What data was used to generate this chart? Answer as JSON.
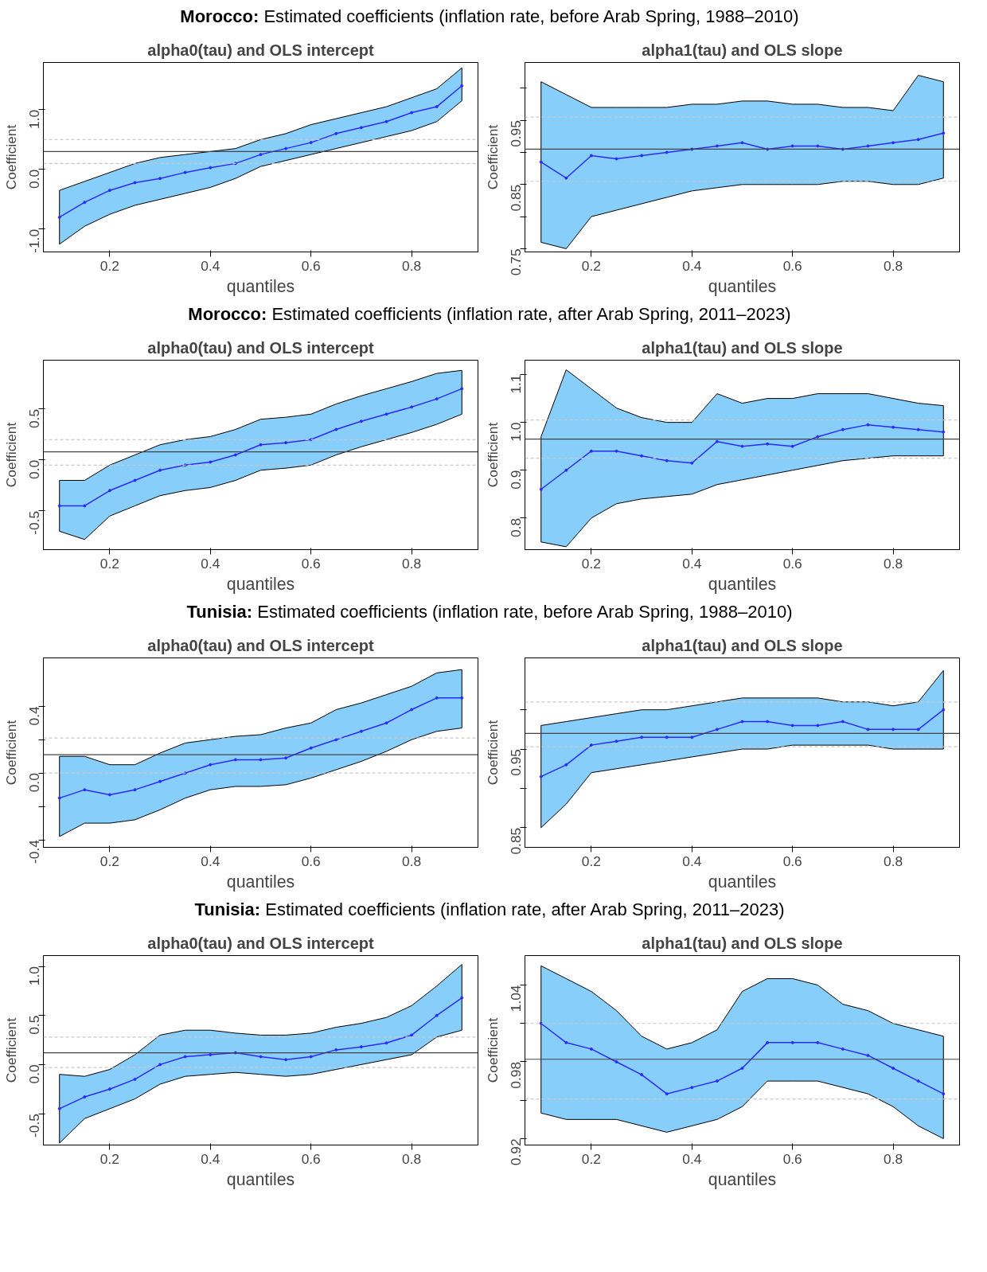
{
  "chart_data": [
    {
      "type": "other",
      "title": "Morocco: Estimated coefficients (inflation rate, before Arab Spring, 1988–2010)"
    },
    {
      "type": "line",
      "title": "alpha0(tau) and OLS intercept",
      "xlabel": "quantiles",
      "ylabel": "Coefficient",
      "marker": "circle",
      "xlim": [
        0.068,
        0.932
      ],
      "xticks": [
        0.2,
        0.4,
        0.6,
        0.8
      ],
      "ylim": [
        -1.38,
        1.79
      ],
      "yticks": [
        {
          "value": -1,
          "label": "-1.0"
        },
        {
          "value": 0,
          "label": "0.0"
        },
        {
          "value": 1,
          "label": "1.0"
        }
      ],
      "x": [
        0.1,
        0.15,
        0.2,
        0.25,
        0.3,
        0.35,
        0.4,
        0.45,
        0.5,
        0.55,
        0.6,
        0.65,
        0.7,
        0.75,
        0.8,
        0.85,
        0.9
      ],
      "series": [
        {
          "color": "#2b2bff",
          "values": [
            -0.8,
            -0.55,
            -0.35,
            -0.22,
            -0.15,
            -0.05,
            0.03,
            0.1,
            0.25,
            0.35,
            0.45,
            0.6,
            0.7,
            0.8,
            0.95,
            1.05,
            1.4
          ],
          "lower": [
            -1.25,
            -0.95,
            -0.75,
            -0.6,
            -0.5,
            -0.4,
            -0.3,
            -0.15,
            0.05,
            0.15,
            0.25,
            0.35,
            0.45,
            0.55,
            0.65,
            0.8,
            1.15
          ],
          "upper": [
            -0.35,
            -0.2,
            -0.05,
            0.1,
            0.2,
            0.25,
            0.3,
            0.35,
            0.5,
            0.6,
            0.75,
            0.85,
            0.95,
            1.05,
            1.2,
            1.35,
            1.7
          ]
        }
      ],
      "ref_lines": [
        {
          "axis": "y",
          "value": 0.3,
          "color": "#444444",
          "line_style": "solid"
        },
        {
          "axis": "y",
          "value": 0.5,
          "color": "#c8c8c8",
          "line_style": "dashed"
        },
        {
          "axis": "y",
          "value": 0.1,
          "color": "#c8c8c8",
          "line_style": "dashed"
        }
      ]
    },
    {
      "type": "line",
      "title": "alpha1(tau) and OLS slope",
      "xlabel": "quantiles",
      "ylabel": "Coefficient",
      "marker": "circle",
      "xlim": [
        0.068,
        0.932
      ],
      "xticks": [
        0.2,
        0.4,
        0.6,
        0.8
      ],
      "ylim": [
        0.745,
        1.04
      ],
      "yticks": [
        0.75,
        {
          "value": 0.8,
          "label": null
        },
        0.85,
        {
          "value": 0.9,
          "label": null
        },
        0.95,
        {
          "value": 1.0,
          "label": null
        }
      ],
      "x": [
        0.1,
        0.15,
        0.2,
        0.25,
        0.3,
        0.35,
        0.4,
        0.45,
        0.5,
        0.55,
        0.6,
        0.65,
        0.7,
        0.75,
        0.8,
        0.85,
        0.9
      ],
      "series": [
        {
          "color": "#2b2bff",
          "values": [
            0.885,
            0.86,
            0.895,
            0.89,
            0.895,
            0.9,
            0.905,
            0.91,
            0.915,
            0.905,
            0.91,
            0.91,
            0.905,
            0.91,
            0.915,
            0.92,
            0.93
          ],
          "lower": [
            0.76,
            0.75,
            0.8,
            0.81,
            0.82,
            0.83,
            0.84,
            0.845,
            0.85,
            0.85,
            0.85,
            0.85,
            0.855,
            0.855,
            0.85,
            0.85,
            0.86
          ],
          "upper": [
            1.01,
            0.99,
            0.97,
            0.97,
            0.97,
            0.97,
            0.975,
            0.975,
            0.98,
            0.98,
            0.975,
            0.975,
            0.97,
            0.97,
            0.965,
            1.02,
            1.01
          ]
        }
      ],
      "ref_lines": [
        {
          "axis": "y",
          "value": 0.905,
          "color": "#444444",
          "line_style": "solid"
        },
        {
          "axis": "y",
          "value": 0.855,
          "color": "#c8c8c8",
          "line_style": "dashed"
        },
        {
          "axis": "y",
          "value": 0.955,
          "color": "#c8c8c8",
          "line_style": "dashed"
        }
      ]
    },
    {
      "type": "other",
      "title": "Morocco: Estimated coefficients (inflation rate, after Arab Spring, 2011–2023)"
    },
    {
      "type": "line",
      "title": "alpha0(tau) and OLS intercept",
      "xlabel": "quantiles",
      "ylabel": "Coefficient",
      "marker": "circle",
      "xlim": [
        0.068,
        0.932
      ],
      "xticks": [
        0.2,
        0.4,
        0.6,
        0.8
      ],
      "ylim": [
        -0.88,
        0.98
      ],
      "yticks": [
        -0.5,
        {
          "value": 0,
          "label": "0.0"
        },
        0.5
      ],
      "x": [
        0.1,
        0.15,
        0.2,
        0.25,
        0.3,
        0.35,
        0.4,
        0.45,
        0.5,
        0.55,
        0.6,
        0.65,
        0.7,
        0.75,
        0.8,
        0.85,
        0.9
      ],
      "series": [
        {
          "color": "#2b2bff",
          "values": [
            -0.45,
            -0.45,
            -0.3,
            -0.2,
            -0.1,
            -0.05,
            -0.02,
            0.05,
            0.15,
            0.17,
            0.2,
            0.3,
            0.38,
            0.45,
            0.52,
            0.6,
            0.7
          ],
          "lower": [
            -0.7,
            -0.78,
            -0.55,
            -0.45,
            -0.35,
            -0.3,
            -0.27,
            -0.2,
            -0.1,
            -0.08,
            -0.05,
            0.05,
            0.13,
            0.2,
            0.27,
            0.35,
            0.45
          ],
          "upper": [
            -0.2,
            -0.2,
            -0.05,
            0.05,
            0.15,
            0.2,
            0.23,
            0.3,
            0.4,
            0.42,
            0.45,
            0.55,
            0.63,
            0.7,
            0.77,
            0.85,
            0.88
          ]
        }
      ],
      "ref_lines": [
        {
          "axis": "y",
          "value": 0.08,
          "color": "#444444",
          "line_style": "solid"
        },
        {
          "axis": "y",
          "value": 0.2,
          "color": "#c8c8c8",
          "line_style": "dashed"
        },
        {
          "axis": "y",
          "value": -0.05,
          "color": "#c8c8c8",
          "line_style": "dashed"
        }
      ]
    },
    {
      "type": "line",
      "title": "alpha1(tau) and OLS slope",
      "xlabel": "quantiles",
      "ylabel": "Coefficient",
      "marker": "circle",
      "xlim": [
        0.068,
        0.932
      ],
      "xticks": [
        0.2,
        0.4,
        0.6,
        0.8
      ],
      "ylim": [
        0.734,
        1.13
      ],
      "yticks": [
        0.8,
        0.9,
        {
          "value": 1.0,
          "label": "1.0"
        },
        1.1
      ],
      "x": [
        0.1,
        0.15,
        0.2,
        0.25,
        0.3,
        0.35,
        0.4,
        0.45,
        0.5,
        0.55,
        0.6,
        0.65,
        0.7,
        0.75,
        0.8,
        0.85,
        0.9
      ],
      "series": [
        {
          "color": "#2b2bff",
          "values": [
            0.86,
            0.9,
            0.94,
            0.94,
            0.93,
            0.92,
            0.915,
            0.96,
            0.95,
            0.955,
            0.95,
            0.97,
            0.985,
            0.995,
            0.99,
            0.985,
            0.98
          ],
          "lower": [
            0.75,
            0.74,
            0.8,
            0.83,
            0.84,
            0.845,
            0.85,
            0.87,
            0.88,
            0.89,
            0.9,
            0.91,
            0.92,
            0.925,
            0.93,
            0.93,
            0.93
          ],
          "upper": [
            0.97,
            1.11,
            1.07,
            1.03,
            1.01,
            1.0,
            1.0,
            1.06,
            1.04,
            1.05,
            1.05,
            1.06,
            1.06,
            1.06,
            1.05,
            1.04,
            1.035
          ]
        }
      ],
      "ref_lines": [
        {
          "axis": "y",
          "value": 0.965,
          "color": "#444444",
          "line_style": "solid"
        },
        {
          "axis": "y",
          "value": 1.005,
          "color": "#c8c8c8",
          "line_style": "dashed"
        },
        {
          "axis": "y",
          "value": 0.925,
          "color": "#c8c8c8",
          "line_style": "dashed"
        }
      ]
    },
    {
      "type": "other",
      "title": "Tunisia: Estimated coefficients (inflation rate, before Arab Spring, 1988–2010)"
    },
    {
      "type": "line",
      "title": "alpha0(tau) and OLS intercept",
      "xlabel": "quantiles",
      "ylabel": "Coefficient",
      "marker": "circle",
      "xlim": [
        0.068,
        0.932
      ],
      "xticks": [
        0.2,
        0.4,
        0.6,
        0.8
      ],
      "ylim": [
        -0.445,
        0.69
      ],
      "yticks": [
        -0.4,
        {
          "value": -0.2,
          "label": null
        },
        {
          "value": 0,
          "label": "0.0"
        },
        {
          "value": 0.2,
          "label": null
        },
        0.4
      ],
      "x": [
        0.1,
        0.15,
        0.2,
        0.25,
        0.3,
        0.35,
        0.4,
        0.45,
        0.5,
        0.55,
        0.6,
        0.65,
        0.7,
        0.75,
        0.8,
        0.85,
        0.9
      ],
      "series": [
        {
          "color": "#2b2bff",
          "values": [
            -0.15,
            -0.1,
            -0.13,
            -0.1,
            -0.05,
            0.0,
            0.05,
            0.08,
            0.08,
            0.09,
            0.15,
            0.2,
            0.25,
            0.3,
            0.38,
            0.45,
            0.45
          ],
          "lower": [
            -0.38,
            -0.3,
            -0.3,
            -0.28,
            -0.22,
            -0.15,
            -0.1,
            -0.08,
            -0.08,
            -0.07,
            -0.03,
            0.02,
            0.07,
            0.13,
            0.2,
            0.25,
            0.27
          ],
          "upper": [
            0.1,
            0.1,
            0.05,
            0.05,
            0.12,
            0.18,
            0.2,
            0.22,
            0.23,
            0.27,
            0.3,
            0.38,
            0.42,
            0.47,
            0.52,
            0.6,
            0.62
          ]
        }
      ],
      "ref_lines": [
        {
          "axis": "y",
          "value": 0.11,
          "color": "#444444",
          "line_style": "solid"
        },
        {
          "axis": "y",
          "value": 0.21,
          "color": "#c8c8c8",
          "line_style": "dashed"
        },
        {
          "axis": "y",
          "value": 0.0,
          "color": "#c8c8c8",
          "line_style": "dashed"
        }
      ]
    },
    {
      "type": "line",
      "title": "alpha1(tau) and OLS slope",
      "xlabel": "quantiles",
      "ylabel": "Coefficient",
      "marker": "circle",
      "xlim": [
        0.068,
        0.932
      ],
      "xticks": [
        0.2,
        0.4,
        0.6,
        0.8
      ],
      "ylim": [
        0.825,
        1.066
      ],
      "yticks": [
        0.85,
        {
          "value": 0.9,
          "label": null
        },
        0.95,
        {
          "value": 1.0,
          "label": null
        }
      ],
      "x": [
        0.1,
        0.15,
        0.2,
        0.25,
        0.3,
        0.35,
        0.4,
        0.45,
        0.5,
        0.55,
        0.6,
        0.65,
        0.7,
        0.75,
        0.8,
        0.85,
        0.9
      ],
      "series": [
        {
          "color": "#2b2bff",
          "values": [
            0.915,
            0.93,
            0.955,
            0.96,
            0.965,
            0.965,
            0.965,
            0.975,
            0.985,
            0.985,
            0.98,
            0.98,
            0.985,
            0.975,
            0.975,
            0.975,
            1.0
          ],
          "lower": [
            0.85,
            0.88,
            0.92,
            0.925,
            0.93,
            0.935,
            0.94,
            0.945,
            0.95,
            0.95,
            0.955,
            0.955,
            0.955,
            0.955,
            0.95,
            0.95,
            0.95
          ],
          "upper": [
            0.98,
            0.985,
            0.99,
            0.995,
            1.0,
            1.0,
            1.005,
            1.01,
            1.015,
            1.015,
            1.015,
            1.015,
            1.01,
            1.01,
            1.005,
            1.01,
            1.05
          ]
        }
      ],
      "ref_lines": [
        {
          "axis": "y",
          "value": 0.97,
          "color": "#444444",
          "line_style": "solid"
        },
        {
          "axis": "y",
          "value": 1.01,
          "color": "#c8c8c8",
          "line_style": "dashed"
        },
        {
          "axis": "y",
          "value": 0.953,
          "color": "#c8c8c8",
          "line_style": "dashed"
        }
      ]
    },
    {
      "type": "other",
      "title": "Tunisia: Estimated coefficients (inflation rate, after Arab Spring, 2011–2023)"
    },
    {
      "type": "line",
      "title": "alpha0(tau) and OLS intercept",
      "xlabel": "quantiles",
      "ylabel": "Coefficient",
      "marker": "circle",
      "xlim": [
        0.068,
        0.932
      ],
      "xticks": [
        0.2,
        0.4,
        0.6,
        0.8
      ],
      "ylim": [
        -0.82,
        1.11
      ],
      "yticks": [
        -0.5,
        {
          "value": 0,
          "label": "0.0"
        },
        0.5,
        {
          "value": 1.0,
          "label": "1.0"
        }
      ],
      "x": [
        0.1,
        0.15,
        0.2,
        0.25,
        0.3,
        0.35,
        0.4,
        0.45,
        0.5,
        0.55,
        0.6,
        0.65,
        0.7,
        0.75,
        0.8,
        0.85,
        0.9
      ],
      "series": [
        {
          "color": "#2b2bff",
          "values": [
            -0.45,
            -0.33,
            -0.25,
            -0.15,
            0.0,
            0.08,
            0.1,
            0.12,
            0.08,
            0.05,
            0.08,
            0.15,
            0.18,
            0.22,
            0.3,
            0.5,
            0.68
          ],
          "lower": [
            -0.8,
            -0.55,
            -0.45,
            -0.35,
            -0.2,
            -0.12,
            -0.1,
            -0.08,
            -0.1,
            -0.12,
            -0.1,
            -0.05,
            0.0,
            0.05,
            0.1,
            0.28,
            0.35
          ],
          "upper": [
            -0.1,
            -0.12,
            -0.05,
            0.1,
            0.3,
            0.35,
            0.35,
            0.32,
            0.3,
            0.3,
            0.32,
            0.38,
            0.42,
            0.48,
            0.6,
            0.8,
            1.02
          ]
        }
      ],
      "ref_lines": [
        {
          "axis": "y",
          "value": 0.12,
          "color": "#444444",
          "line_style": "solid"
        },
        {
          "axis": "y",
          "value": 0.28,
          "color": "#c8c8c8",
          "line_style": "dashed"
        },
        {
          "axis": "y",
          "value": -0.03,
          "color": "#c8c8c8",
          "line_style": "dashed"
        }
      ]
    },
    {
      "type": "line",
      "title": "alpha1(tau) and OLS slope",
      "xlabel": "quantiles",
      "ylabel": "Coefficient",
      "marker": "circle",
      "xlim": [
        0.068,
        0.932
      ],
      "xticks": [
        0.2,
        0.4,
        0.6,
        0.8
      ],
      "ylim": [
        0.915,
        1.063
      ],
      "yticks": [
        0.92,
        {
          "value": 0.95,
          "label": null
        },
        0.98,
        {
          "value": 1.01,
          "label": null
        },
        1.04
      ],
      "x": [
        0.1,
        0.15,
        0.2,
        0.25,
        0.3,
        0.35,
        0.4,
        0.45,
        0.5,
        0.55,
        0.6,
        0.65,
        0.7,
        0.75,
        0.8,
        0.85,
        0.9
      ],
      "series": [
        {
          "color": "#2b2bff",
          "values": [
            1.01,
            0.995,
            0.99,
            0.98,
            0.97,
            0.955,
            0.96,
            0.965,
            0.975,
            0.995,
            0.995,
            0.995,
            0.99,
            0.985,
            0.975,
            0.965,
            0.955
          ],
          "lower": [
            0.94,
            0.935,
            0.935,
            0.935,
            0.93,
            0.925,
            0.93,
            0.935,
            0.945,
            0.965,
            0.965,
            0.965,
            0.96,
            0.955,
            0.945,
            0.93,
            0.92
          ],
          "upper": [
            1.055,
            1.045,
            1.035,
            1.02,
            1.0,
            0.99,
            0.995,
            1.005,
            1.035,
            1.045,
            1.045,
            1.04,
            1.025,
            1.02,
            1.01,
            1.005,
            1.0
          ]
        }
      ],
      "ref_lines": [
        {
          "axis": "y",
          "value": 0.982,
          "color": "#444444",
          "line_style": "solid"
        },
        {
          "axis": "y",
          "value": 0.951,
          "color": "#c8c8c8",
          "line_style": "dashed"
        },
        {
          "axis": "y",
          "value": 1.01,
          "color": "#c8c8c8",
          "line_style": "dashed"
        }
      ]
    }
  ]
}
